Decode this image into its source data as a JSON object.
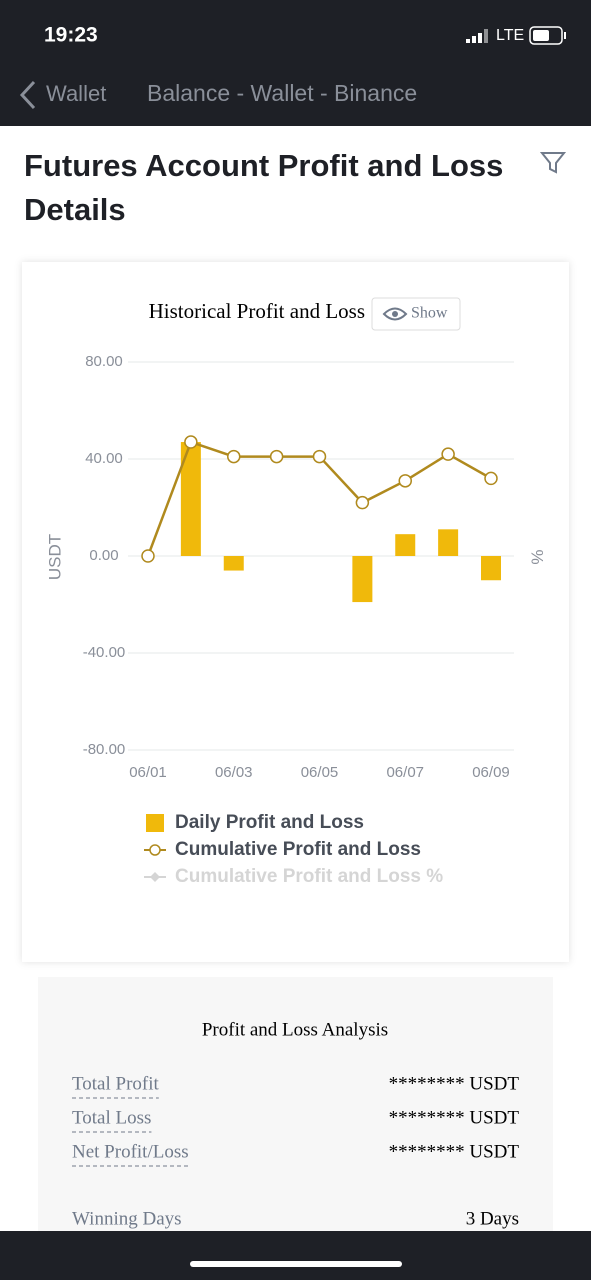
{
  "status_bar": {
    "time": "19:23",
    "network": "LTE"
  },
  "nav": {
    "back": "Wallet",
    "title": "Balance - Wallet - Binance"
  },
  "heading": "Futures Account Profit and Loss Details",
  "chart_data": {
    "type": "bar",
    "title": "Historical Profit and Loss",
    "button": "Show",
    "y_label": "USDT",
    "y2_label": "%",
    "categories": [
      "06/01",
      null,
      "06/03",
      null,
      "06/05",
      null,
      "06/07",
      null,
      "06/09"
    ],
    "series": [
      {
        "name": "Daily Profit and Loss",
        "type": "bar",
        "color": "#f0b90b",
        "values": [
          0,
          47,
          -6,
          0,
          0,
          -19,
          9,
          11,
          -10
        ]
      },
      {
        "name": "Cumulative Profit and Loss",
        "type": "line",
        "color": "#b08a1e",
        "values": [
          0,
          47,
          41,
          41,
          41,
          22,
          31,
          42,
          32
        ]
      }
    ],
    "legend_hidden": "Cumulative Profit and Loss %",
    "ylim": [
      -80,
      80
    ],
    "yticks": [
      {
        "value": 80,
        "label": "80.00"
      },
      {
        "value": 40,
        "label": "40.00"
      },
      {
        "value": 0,
        "label": "0.00"
      },
      {
        "value": -40,
        "label": "-40.00"
      },
      {
        "value": -80,
        "label": "-80.00"
      }
    ],
    "grid": true
  },
  "analysis": {
    "title": "Profit and Loss Analysis",
    "rows": [
      [
        "Total Profit",
        "******** USDT"
      ],
      [
        "Total Loss",
        "******** USDT"
      ],
      [
        "Net Profit/Loss",
        "******** USDT"
      ],
      [
        "Winning Days",
        "3 Days"
      ]
    ]
  }
}
